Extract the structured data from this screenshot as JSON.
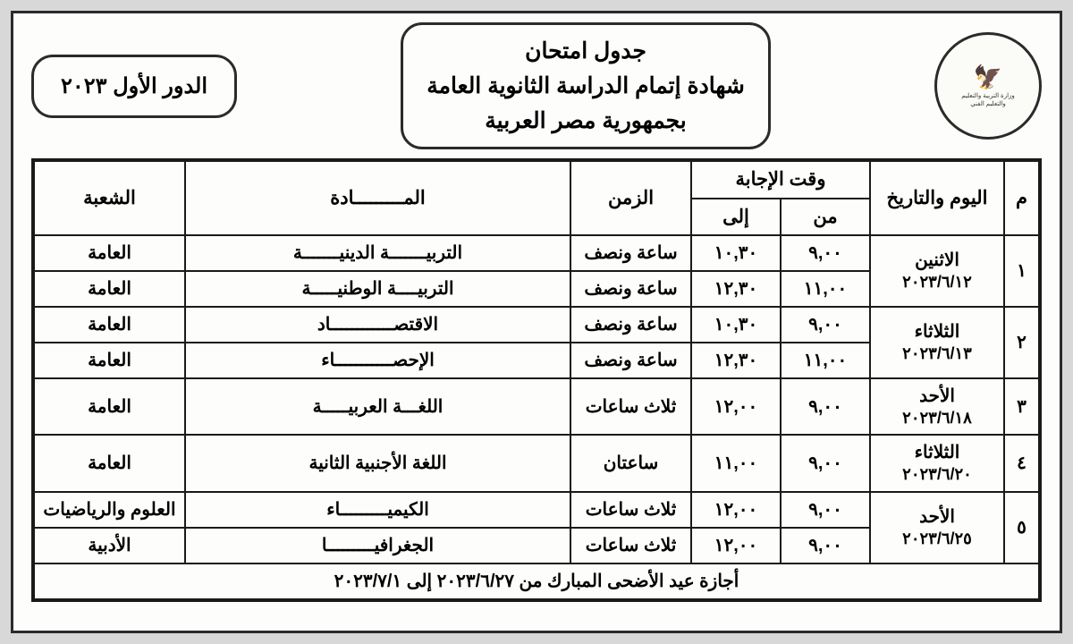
{
  "header": {
    "title_line1": "جدول امتحان",
    "title_line2": "شهادة إتمام الدراسة الثانوية العامة",
    "title_line3": "بجمهورية مصر العربية",
    "round_label": "الدور الأول ٢٠٢٣",
    "logo_alt": "شعار وزارة التربية والتعليم"
  },
  "columns": {
    "num": "م",
    "date": "اليوم والتاريخ",
    "answer_time": "وقت الإجابة",
    "from": "من",
    "to": "إلى",
    "duration": "الزمن",
    "subject": "المـــــــــادة",
    "track": "الشعبة"
  },
  "rows": [
    {
      "num": "١",
      "day": "الاثنين",
      "date": "٢٠٢٣/٦/١٢",
      "sessions": [
        {
          "from": "٩,٠٠",
          "to": "١٠,٣٠",
          "duration": "ساعة ونصف",
          "subject": "التربيـــــــة الدينيـــــــة",
          "track": "العامة"
        },
        {
          "from": "١١,٠٠",
          "to": "١٢,٣٠",
          "duration": "ساعة ونصف",
          "subject": "التربيــــة الوطنيـــــة",
          "track": "العامة"
        }
      ]
    },
    {
      "num": "٢",
      "day": "الثلاثاء",
      "date": "٢٠٢٣/٦/١٣",
      "sessions": [
        {
          "from": "٩,٠٠",
          "to": "١٠,٣٠",
          "duration": "ساعة ونصف",
          "subject": "الاقتصــــــــــــاد",
          "track": "العامة"
        },
        {
          "from": "١١,٠٠",
          "to": "١٢,٣٠",
          "duration": "ساعة ونصف",
          "subject": "الإحصـــــــــــاء",
          "track": "العامة"
        }
      ]
    },
    {
      "num": "٣",
      "day": "الأحد",
      "date": "٢٠٢٣/٦/١٨",
      "sessions": [
        {
          "from": "٩,٠٠",
          "to": "١٢,٠٠",
          "duration": "ثلاث ساعات",
          "subject": "اللغـــة العربيـــــة",
          "track": "العامة"
        }
      ]
    },
    {
      "num": "٤",
      "day": "الثلاثاء",
      "date": "٢٠٢٣/٦/٢٠",
      "sessions": [
        {
          "from": "٩,٠٠",
          "to": "١١,٠٠",
          "duration": "ساعتان",
          "subject": "اللغة الأجنبية الثانية",
          "track": "العامة"
        }
      ]
    },
    {
      "num": "٥",
      "day": "الأحد",
      "date": "٢٠٢٣/٦/٢٥",
      "sessions": [
        {
          "from": "٩,٠٠",
          "to": "١٢,٠٠",
          "duration": "ثلاث ساعات",
          "subject": "الكيميـــــــــاء",
          "track": "العلوم والرياضيات"
        },
        {
          "from": "٩,٠٠",
          "to": "١٢,٠٠",
          "duration": "ثلاث ساعات",
          "subject": "الجغرافيـــــــــا",
          "track": "الأدبية"
        }
      ]
    }
  ],
  "footer": "أجازة عيد الأضحى المبارك من ٢٠٢٣/٦/٢٧ إلى ٢٠٢٣/٧/١",
  "style": {
    "page_bg": "#d8d8d8",
    "sheet_bg": "#fdfdfb",
    "border_color": "#1a1a1a",
    "footer_bg": "#e9e9e0",
    "title_fontsize": 25,
    "header_fontsize": 21,
    "cell_fontsize": 20
  }
}
